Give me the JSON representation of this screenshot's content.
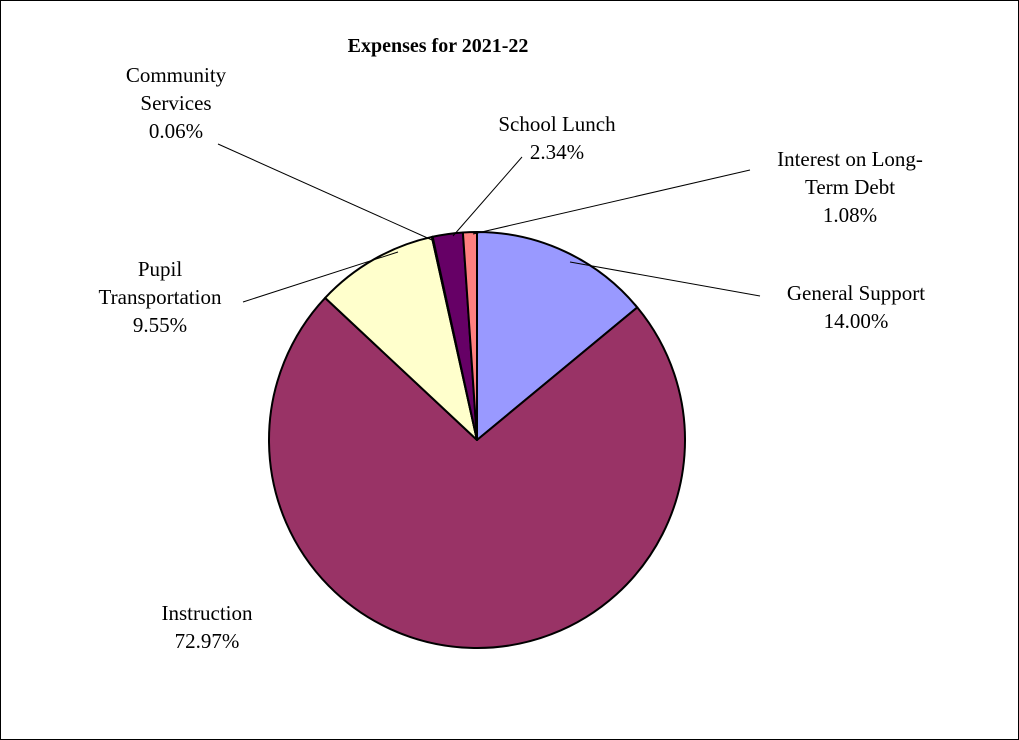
{
  "chart_data": {
    "type": "pie",
    "title": "Expenses for 2021-22",
    "slices": [
      {
        "label_lines": [
          "General Support"
        ],
        "value_text": "14.00%",
        "value": 14.0,
        "color": "#9999ff"
      },
      {
        "label_lines": [
          "Instruction"
        ],
        "value_text": "72.97%",
        "value": 72.97,
        "color": "#993366"
      },
      {
        "label_lines": [
          "Pupil",
          "Transportation"
        ],
        "value_text": "9.55%",
        "value": 9.55,
        "color": "#ffffcc"
      },
      {
        "label_lines": [
          "Community",
          "Services"
        ],
        "value_text": "0.06%",
        "value": 0.06,
        "color": "#ccffff"
      },
      {
        "label_lines": [
          "School Lunch"
        ],
        "value_text": "2.34%",
        "value": 2.34,
        "color": "#660066"
      },
      {
        "label_lines": [
          "Interest on Long-",
          "Term Debt"
        ],
        "value_text": "1.08%",
        "value": 1.08,
        "color": "#ff8080"
      }
    ]
  }
}
